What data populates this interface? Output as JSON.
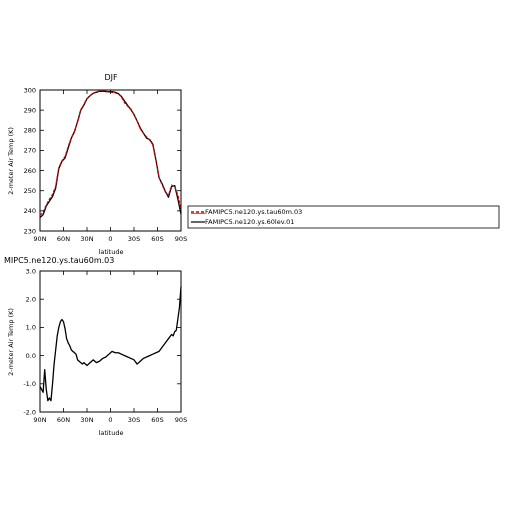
{
  "chart_data": [
    {
      "type": "line",
      "title": "DJF",
      "xlabel": "latitude",
      "ylabel": "2-meter Air Temp (K)",
      "xlim": [
        90,
        -90
      ],
      "ylim": [
        230,
        300
      ],
      "xticks": [
        90,
        60,
        30,
        0,
        -30,
        -60,
        -90
      ],
      "xtick_labels": [
        "90N",
        "60N",
        "30N",
        "0",
        "30S",
        "60S",
        "90S"
      ],
      "yticks": [
        230,
        240,
        250,
        260,
        270,
        280,
        290,
        300
      ],
      "ytick_labels": [
        "230",
        "240",
        "250",
        "260",
        "270",
        "280",
        "290",
        "300"
      ],
      "legend_position": "right, outside plot",
      "series": [
        {
          "name": "FAMIPC5.ne120.ys.tau60m.03",
          "color": "#cc0000",
          "dash": "dashed",
          "x": [
            90,
            86,
            82,
            78,
            74,
            70,
            66,
            62,
            58,
            54,
            50,
            46,
            42,
            38,
            34,
            30,
            26,
            22,
            18,
            14,
            10,
            6,
            2,
            -2,
            -6,
            -10,
            -14,
            -18,
            -22,
            -26,
            -30,
            -34,
            -38,
            -42,
            -46,
            -50,
            -54,
            -58,
            -62,
            -66,
            -70,
            -74,
            -78,
            -82,
            -86,
            -90
          ],
          "y": [
            237.8,
            239.3,
            242.9,
            245.8,
            248.2,
            252.2,
            261.5,
            264.8,
            267.0,
            272.0,
            276.3,
            279.6,
            284.2,
            289.8,
            292.9,
            295.8,
            297.2,
            298.4,
            299.2,
            299.4,
            299.7,
            299.1,
            299.1,
            298.8,
            298.6,
            298.0,
            296.5,
            293.6,
            291.9,
            290.6,
            287.9,
            284.6,
            280.7,
            278.5,
            276.7,
            275.1,
            272.8,
            265.2,
            256.4,
            252.9,
            249.4,
            247.6,
            252.8,
            252.0,
            247.8,
            240.6
          ]
        },
        {
          "name": "FAMIPC5.ne120.ys.60lev.01",
          "color": "#000000",
          "dash": "solid",
          "x": [
            90,
            86,
            82,
            78,
            74,
            70,
            66,
            62,
            58,
            54,
            50,
            46,
            42,
            38,
            34,
            30,
            26,
            22,
            18,
            14,
            10,
            6,
            2,
            -2,
            -6,
            -10,
            -14,
            -18,
            -22,
            -26,
            -30,
            -34,
            -38,
            -42,
            -46,
            -50,
            -54,
            -58,
            -62,
            -66,
            -70,
            -74,
            -78,
            -82,
            -86,
            -90
          ],
          "y": [
            236.7,
            238.1,
            242.4,
            244.8,
            247.1,
            251.3,
            261.0,
            264.6,
            266.3,
            271.2,
            276.1,
            279.3,
            284.4,
            290.0,
            292.5,
            295.7,
            297.2,
            298.4,
            298.9,
            299.3,
            299.3,
            299.3,
            299.1,
            299.2,
            298.9,
            298.2,
            296.8,
            294.5,
            292.3,
            290.3,
            287.8,
            284.6,
            281.1,
            278.6,
            276.1,
            275.4,
            273.2,
            265.3,
            256.4,
            253.4,
            249.7,
            246.8,
            252.1,
            252.5,
            245.9,
            238.4
          ]
        }
      ]
    },
    {
      "type": "line",
      "title": "MIPC5.ne120.ys.tau60m.03",
      "xlabel": "latitude",
      "ylabel": "2-meter Air Temp (K)",
      "xlim": [
        90,
        -90
      ],
      "ylim": [
        -2.0,
        3.0
      ],
      "xticks": [
        90,
        60,
        30,
        0,
        -30,
        -60,
        -90
      ],
      "xtick_labels": [
        "90N",
        "60N",
        "30N",
        "0",
        "30S",
        "60S",
        "90S"
      ],
      "yticks": [
        -2.0,
        -1.0,
        0.0,
        1.0,
        2.0,
        3.0
      ],
      "ytick_labels": [
        "-2.0",
        "-1.0",
        "0.0",
        "1.0",
        "2.0",
        "3.0"
      ],
      "series": [
        {
          "color": "#000000",
          "dash": "solid",
          "x": [
            90,
            88,
            86,
            84,
            82,
            80,
            78,
            76,
            74,
            72,
            70,
            68,
            66,
            64,
            62,
            60,
            58,
            56,
            54,
            52,
            50,
            48,
            46,
            44,
            42,
            40,
            38,
            36,
            34,
            30,
            26,
            22,
            18,
            14,
            10,
            6,
            2,
            -2,
            -6,
            -10,
            -14,
            -18,
            -22,
            -26,
            -30,
            -34,
            -38,
            -42,
            -46,
            -50,
            -54,
            -58,
            -62,
            -66,
            -70,
            -74,
            -78,
            -80,
            -82,
            -84,
            -86,
            -88,
            -90
          ],
          "y": [
            -1.1,
            -1.2,
            -1.3,
            -0.5,
            -1.2,
            -1.6,
            -1.5,
            -1.6,
            -1.0,
            -0.3,
            0.2,
            0.7,
            1.0,
            1.2,
            1.28,
            1.2,
            0.95,
            0.6,
            0.45,
            0.35,
            0.2,
            0.15,
            0.1,
            0.05,
            -0.15,
            -0.2,
            -0.25,
            -0.3,
            -0.25,
            -0.35,
            -0.25,
            -0.15,
            -0.25,
            -0.2,
            -0.1,
            -0.05,
            0.05,
            0.15,
            0.1,
            0.1,
            0.05,
            0.0,
            -0.05,
            -0.1,
            -0.15,
            -0.3,
            -0.2,
            -0.1,
            -0.05,
            0.0,
            0.05,
            0.1,
            0.15,
            0.3,
            0.45,
            0.6,
            0.75,
            0.7,
            0.85,
            0.9,
            1.3,
            1.7,
            2.45
          ]
        }
      ]
    }
  ]
}
